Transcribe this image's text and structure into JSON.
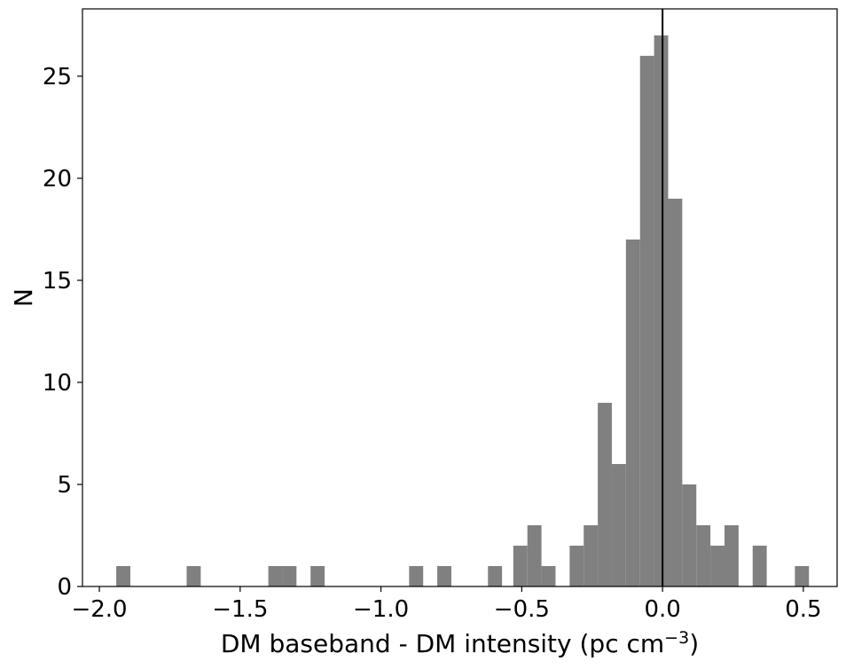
{
  "chart_data": {
    "type": "bar",
    "subtype": "histogram",
    "title": "",
    "xlabel": "DM baseband - DM intensity (pc cm",
    "xlabel_unit_exponent": "−3",
    "xlabel_close": ")",
    "ylabel": "N",
    "xlim": [
      -2.06,
      0.62
    ],
    "ylim": [
      0,
      28.3
    ],
    "bin_width": 0.05,
    "bar_color": "#808080",
    "vline_x": 0.0,
    "vline_color": "#000000",
    "grid": false,
    "legend": "none",
    "xticks": [
      {
        "value": -2.0,
        "label": "−2.0"
      },
      {
        "value": -1.5,
        "label": "−1.5"
      },
      {
        "value": -1.0,
        "label": "−1.0"
      },
      {
        "value": -0.5,
        "label": "−0.5"
      },
      {
        "value": 0.0,
        "label": "0.0"
      },
      {
        "value": 0.5,
        "label": "0.5"
      }
    ],
    "yticks": [
      {
        "value": 0,
        "label": "0"
      },
      {
        "value": 5,
        "label": "5"
      },
      {
        "value": 10,
        "label": "10"
      },
      {
        "value": 15,
        "label": "15"
      },
      {
        "value": 20,
        "label": "20"
      },
      {
        "value": 25,
        "label": "25"
      }
    ],
    "bins": [
      {
        "left": -1.94,
        "count": 1
      },
      {
        "left": -1.69,
        "count": 1
      },
      {
        "left": -1.4,
        "count": 1
      },
      {
        "left": -1.35,
        "count": 1
      },
      {
        "left": -1.25,
        "count": 1
      },
      {
        "left": -0.9,
        "count": 1
      },
      {
        "left": -0.8,
        "count": 1
      },
      {
        "left": -0.62,
        "count": 1
      },
      {
        "left": -0.53,
        "count": 2
      },
      {
        "left": -0.48,
        "count": 3
      },
      {
        "left": -0.43,
        "count": 1
      },
      {
        "left": -0.33,
        "count": 2
      },
      {
        "left": -0.28,
        "count": 3
      },
      {
        "left": -0.23,
        "count": 9
      },
      {
        "left": -0.18,
        "count": 6
      },
      {
        "left": -0.13,
        "count": 17
      },
      {
        "left": -0.08,
        "count": 26
      },
      {
        "left": -0.03,
        "count": 27
      },
      {
        "left": 0.02,
        "count": 19
      },
      {
        "left": 0.07,
        "count": 5
      },
      {
        "left": 0.12,
        "count": 3
      },
      {
        "left": 0.17,
        "count": 2
      },
      {
        "left": 0.22,
        "count": 3
      },
      {
        "left": 0.32,
        "count": 2
      },
      {
        "left": 0.47,
        "count": 1
      }
    ]
  }
}
